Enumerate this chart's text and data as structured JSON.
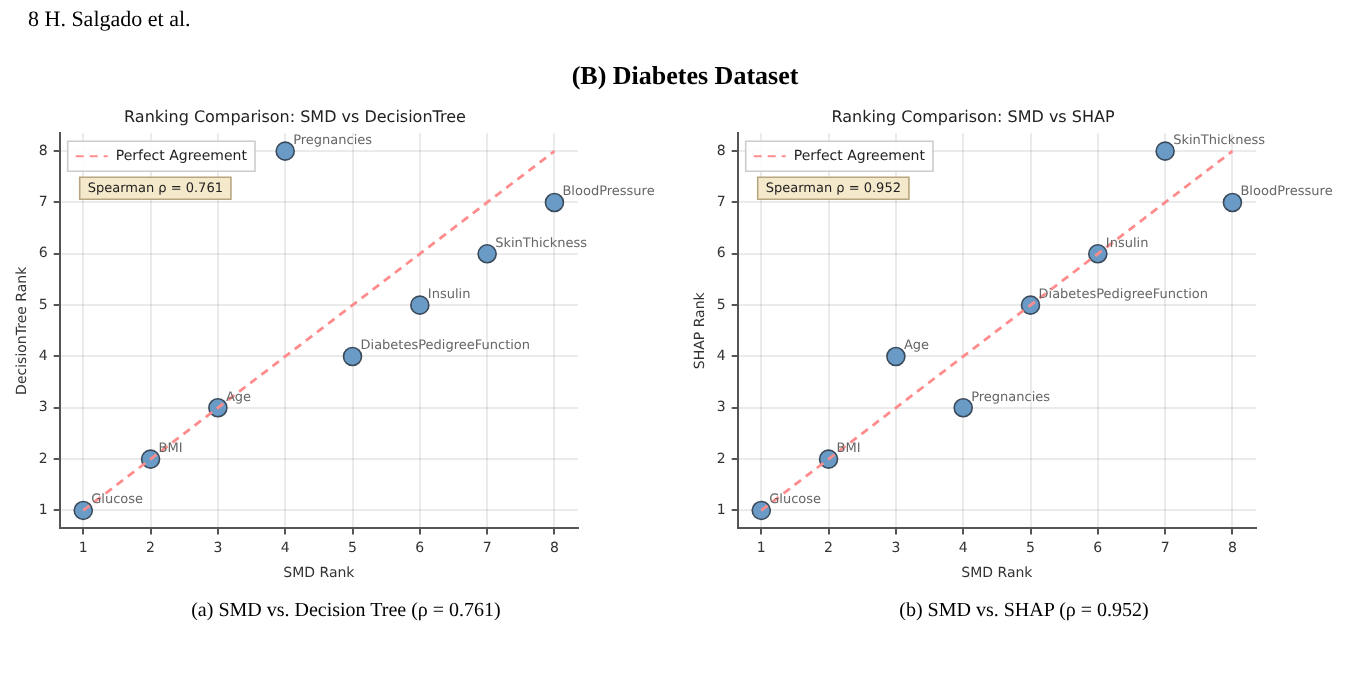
{
  "chart_data": [
    {
      "type": "scatter",
      "title": "Ranking Comparison: SMD vs DecisionTree",
      "xlabel": "SMD Rank",
      "ylabel": "DecisionTree Rank",
      "x": [
        1,
        2,
        3,
        4,
        5,
        6,
        7,
        8
      ],
      "xlim": [
        0.65,
        8.35
      ],
      "ylim": [
        0.65,
        8.35
      ],
      "xticks": [
        1,
        2,
        3,
        4,
        5,
        6,
        7,
        8
      ],
      "yticks": [
        1,
        2,
        3,
        4,
        5,
        6,
        7,
        8
      ],
      "grid": true,
      "legend": "top left",
      "series": [
        {
          "color": "#6a9bc6",
          "marker": "circle",
          "values": [
            1,
            2,
            3,
            8,
            4,
            5,
            6,
            7
          ]
        },
        {
          "type": "line",
          "name": "Perfect Agreement",
          "color": "#ff8c8c",
          "line_style": "dashed",
          "values": [
            1,
            2,
            3,
            4,
            5,
            6,
            7,
            8
          ]
        }
      ],
      "annotations": [
        "8 H. Salgado et al.",
        "(B) Diabetes Dataset",
        {
          "text": "Glucose",
          "x": 1,
          "y": 1
        },
        {
          "text": "BMI",
          "x": 2,
          "y": 2
        },
        {
          "text": "Age",
          "x": 3,
          "y": 3
        },
        {
          "text": "Pregnancies",
          "x": 4,
          "y": 8
        },
        {
          "text": "DiabetesPedigreeFunction",
          "x": 5,
          "y": 4
        },
        {
          "text": "Insulin",
          "x": 6,
          "y": 5
        },
        {
          "text": "SkinThickness",
          "x": 7,
          "y": 6
        },
        {
          "text": "BloodPressure",
          "x": 8,
          "y": 7
        },
        "Spearman ρ = 0.761",
        "(a) SMD vs. Decision Tree (ρ = 0.761)"
      ]
    },
    {
      "type": "scatter",
      "title": "Ranking Comparison: SMD vs SHAP",
      "xlabel": "SMD Rank",
      "ylabel": "SHAP Rank",
      "x": [
        1,
        2,
        3,
        4,
        5,
        6,
        7,
        8
      ],
      "xlim": [
        0.65,
        8.35
      ],
      "ylim": [
        0.65,
        8.35
      ],
      "xticks": [
        1,
        2,
        3,
        4,
        5,
        6,
        7,
        8
      ],
      "yticks": [
        1,
        2,
        3,
        4,
        5,
        6,
        7,
        8
      ],
      "grid": true,
      "legend": "top left",
      "series": [
        {
          "color": "#6a9bc6",
          "marker": "circle",
          "values": [
            1,
            2,
            4,
            3,
            5,
            6,
            8,
            7
          ]
        },
        {
          "type": "line",
          "name": "Perfect Agreement",
          "color": "#ff8c8c",
          "line_style": "dashed",
          "values": [
            1,
            2,
            3,
            4,
            5,
            6,
            7,
            8
          ]
        }
      ],
      "annotations": [
        {
          "text": "Glucose",
          "x": 1,
          "y": 1
        },
        {
          "text": "BMI",
          "x": 2,
          "y": 2
        },
        {
          "text": "Age",
          "x": 3,
          "y": 4
        },
        {
          "text": "Pregnancies",
          "x": 4,
          "y": 3
        },
        {
          "text": "DiabetesPedigreeFunction",
          "x": 5,
          "y": 5
        },
        {
          "text": "Insulin",
          "x": 6,
          "y": 6
        },
        {
          "text": "SkinThickness",
          "x": 7,
          "y": 8
        },
        {
          "text": "BloodPressure",
          "x": 8,
          "y": 7
        },
        "Spearman ρ = 0.952",
        "(b) SMD vs. SHAP (ρ = 0.952)"
      ]
    }
  ]
}
